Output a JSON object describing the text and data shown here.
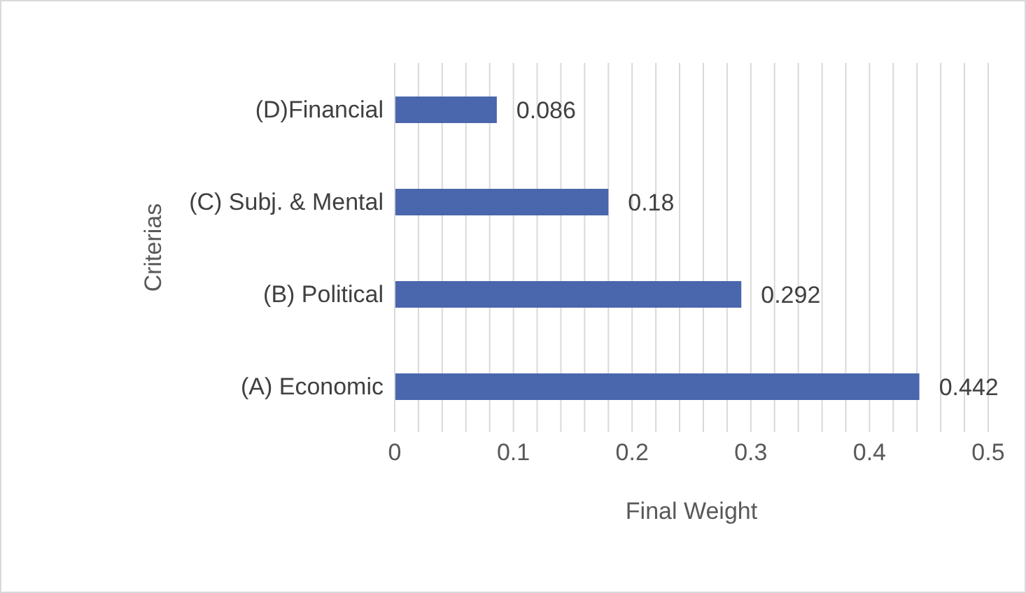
{
  "chart_data": {
    "type": "bar",
    "orientation": "horizontal",
    "xlabel": "Final Weight",
    "ylabel": "Criterias",
    "categories": [
      "(D)Financial",
      "(C) Subj. & Mental",
      "(B) Political",
      "(A) Economic"
    ],
    "values": [
      0.086,
      0.18,
      0.292,
      0.442
    ],
    "color": "#4a66ac",
    "xlim": [
      0,
      0.5
    ],
    "xticks": [
      0,
      {
        "value": 0.02,
        "label": null
      },
      {
        "value": 0.04,
        "label": null
      },
      {
        "value": 0.06,
        "label": null
      },
      {
        "value": 0.08,
        "label": null
      },
      0.1,
      {
        "value": 0.12,
        "label": null
      },
      {
        "value": 0.14,
        "label": null
      },
      {
        "value": 0.16,
        "label": null
      },
      {
        "value": 0.18,
        "label": null
      },
      0.2,
      {
        "value": 0.22,
        "label": null
      },
      {
        "value": 0.24,
        "label": null
      },
      {
        "value": 0.26,
        "label": null
      },
      {
        "value": 0.28,
        "label": null
      },
      0.3,
      {
        "value": 0.32,
        "label": null
      },
      {
        "value": 0.34,
        "label": null
      },
      {
        "value": 0.36,
        "label": null
      },
      {
        "value": 0.38,
        "label": null
      },
      0.4,
      {
        "value": 0.42,
        "label": null
      },
      {
        "value": 0.44,
        "label": null
      },
      {
        "value": 0.46,
        "label": null
      },
      {
        "value": 0.48,
        "label": null
      },
      0.5
    ],
    "grid": "x",
    "data_labels": true
  }
}
